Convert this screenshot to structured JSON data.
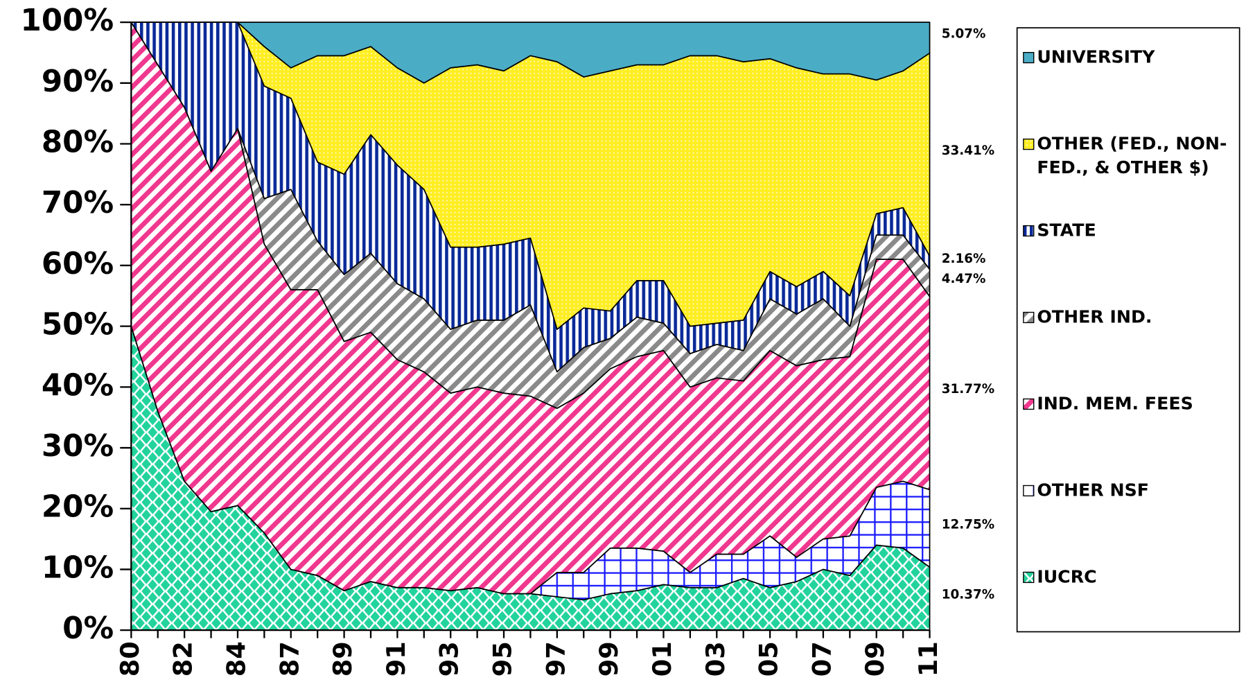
{
  "chart_data": {
    "type": "stacked_area_percent",
    "categories": [
      "80",
      null,
      "82",
      null,
      "84",
      null,
      "87",
      null,
      "89",
      null,
      "91",
      null,
      "93",
      null,
      "95",
      null,
      "97",
      null,
      "99",
      null,
      "01",
      null,
      "03",
      null,
      "05",
      null,
      "07",
      null,
      "09",
      null,
      "11"
    ],
    "ylim": [
      0,
      100
    ],
    "yticks": [
      {
        "value": 0,
        "label": "0%"
      },
      {
        "value": 10,
        "label": "10%"
      },
      {
        "value": 20,
        "label": "20%"
      },
      {
        "value": 30,
        "label": "30%"
      },
      {
        "value": 40,
        "label": "40%"
      },
      {
        "value": 50,
        "label": "50%"
      },
      {
        "value": 60,
        "label": "60%"
      },
      {
        "value": 70,
        "label": "70%"
      },
      {
        "value": 80,
        "label": "80%"
      },
      {
        "value": 90,
        "label": "90%"
      },
      {
        "value": 100,
        "label": "100%"
      }
    ],
    "series": [
      {
        "name": "IUCRC",
        "color": "#22d39c",
        "pattern": "diamond",
        "end_label": "10.37%",
        "values": [
          50,
          36,
          24.5,
          19.5,
          20.5,
          16,
          10,
          9,
          6.5,
          8,
          7,
          7,
          6.5,
          7,
          6,
          6,
          5.5,
          5,
          6,
          6.5,
          7.5,
          7,
          7,
          8.5,
          7,
          8,
          10,
          9,
          14,
          13.5,
          10.37
        ]
      },
      {
        "name": "OTHER NSF",
        "color": "#1a1aff",
        "pattern": "grid",
        "end_label": "12.75%",
        "values": [
          0,
          0,
          0,
          0,
          0,
          0,
          0,
          0,
          0,
          0,
          0,
          0,
          0,
          0,
          0,
          0,
          4,
          4.5,
          7.5,
          7,
          5.5,
          2.5,
          5.5,
          4,
          8.5,
          4,
          5,
          6.5,
          9.5,
          11,
          12.75
        ]
      },
      {
        "name": "IND. MEM. FEES",
        "color": "#f0388f",
        "pattern": "diag",
        "end_label": "31.77%",
        "values": [
          50,
          57,
          61.5,
          56,
          62,
          47.5,
          46,
          47,
          41,
          41,
          37.5,
          35.5,
          32.5,
          33,
          33,
          32.5,
          27,
          29.5,
          29.5,
          31.5,
          33,
          30.5,
          29,
          28.5,
          30.5,
          31.5,
          29.5,
          29.5,
          37.5,
          36.5,
          31.77
        ]
      },
      {
        "name": "OTHER IND.",
        "color": "#8a8a8a",
        "pattern": "diag",
        "end_label": "4.47%",
        "values": [
          0,
          0,
          0,
          0,
          0,
          7.5,
          16.5,
          8,
          11,
          13,
          12.5,
          12,
          10.5,
          11,
          12,
          15,
          6,
          7.5,
          5,
          6.5,
          4.5,
          5.5,
          5.5,
          5,
          8.5,
          8.5,
          10,
          5,
          4,
          4,
          4.47
        ]
      },
      {
        "name": "STATE",
        "color": "#0a2a99",
        "pattern": "vstripe",
        "end_label": "2.16%",
        "values": [
          0,
          7,
          14,
          24.5,
          17.5,
          18.5,
          15,
          13,
          16.5,
          19.5,
          19.5,
          18,
          13.5,
          12,
          12.5,
          11,
          7,
          6.5,
          4.5,
          6,
          7,
          4.5,
          3.5,
          5,
          4.5,
          4.5,
          4.5,
          5,
          3.5,
          4.5,
          2.16
        ]
      },
      {
        "name": "OTHER (FED., NON-FED., & OTHER $)",
        "color": "#ffee22",
        "pattern": "dots",
        "end_label": "33.41%",
        "values": [
          0,
          0,
          0,
          0,
          0,
          6.5,
          5,
          17.5,
          19.5,
          14.5,
          16,
          17.5,
          29.5,
          30,
          28.5,
          30,
          44,
          38,
          39.5,
          35.5,
          35.5,
          44.5,
          44,
          42.5,
          35,
          36,
          32.5,
          36.5,
          22,
          22.5,
          33.41
        ]
      },
      {
        "name": "UNIVERSITY",
        "color": "#4bacc6",
        "pattern": "solid",
        "end_label": "5.07%",
        "values": [
          0,
          0,
          0,
          0,
          0,
          4,
          7.5,
          5.5,
          5.5,
          4,
          7.5,
          10,
          7.5,
          7,
          8,
          5.5,
          6.5,
          9,
          8,
          7,
          7,
          5.5,
          5.5,
          6.5,
          6,
          7.5,
          8.5,
          8.5,
          9.5,
          8,
          5.07
        ]
      }
    ]
  }
}
